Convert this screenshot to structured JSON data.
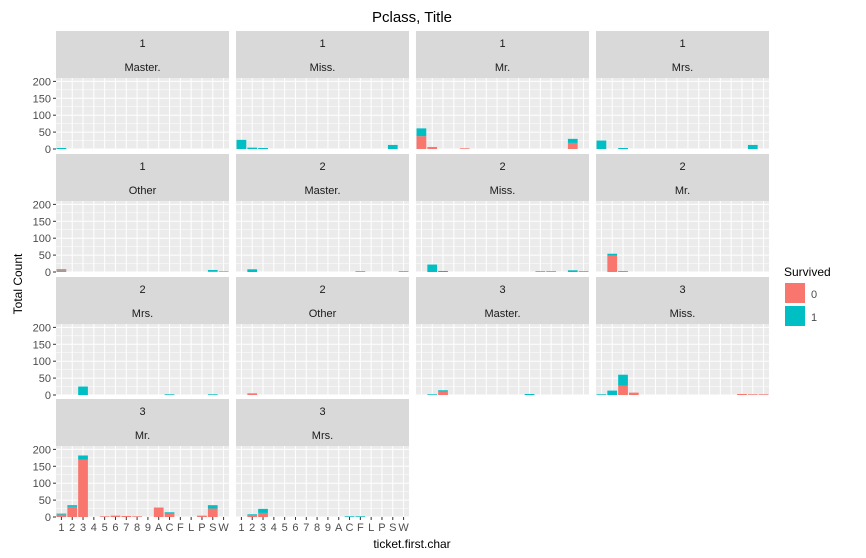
{
  "chart_data": {
    "type": "bar",
    "stacked": true,
    "title": "Pclass, Title",
    "xlabel": "ticket.first.char",
    "ylabel": "Total Count",
    "ylim": [
      0,
      210
    ],
    "y_ticks": [
      "0",
      "50",
      "100",
      "150",
      "200"
    ],
    "categories": [
      "1",
      "2",
      "3",
      "4",
      "5",
      "6",
      "7",
      "8",
      "9",
      "A",
      "C",
      "F",
      "L",
      "P",
      "S",
      "W"
    ],
    "legend": {
      "title": "Survived",
      "placement": "right",
      "entries": [
        {
          "label": "0",
          "color": "#F8766D"
        },
        {
          "label": "1",
          "color": "#00BFC4"
        }
      ]
    },
    "panels": [
      {
        "strip1": "1",
        "strip2": "Master.",
        "s0": [
          0,
          0,
          0,
          0,
          0,
          0,
          0,
          0,
          0,
          0,
          0,
          0,
          0,
          0,
          0,
          0
        ],
        "s1": [
          3,
          0,
          0,
          0,
          0,
          0,
          0,
          0,
          0,
          0,
          0,
          0,
          0,
          0,
          0,
          0
        ]
      },
      {
        "strip1": "1",
        "strip2": "Miss.",
        "s0": [
          0,
          0,
          0,
          0,
          0,
          0,
          0,
          0,
          0,
          0,
          0,
          0,
          0,
          0,
          0,
          0
        ],
        "s1": [
          27,
          4,
          3,
          0,
          0,
          0,
          0,
          0,
          0,
          0,
          0,
          0,
          0,
          0,
          12,
          0
        ]
      },
      {
        "strip1": "1",
        "strip2": "Mr.",
        "s0": [
          38,
          6,
          0,
          0,
          2,
          0,
          0,
          0,
          0,
          0,
          0,
          0,
          0,
          0,
          18,
          0
        ],
        "s1": [
          23,
          0,
          0,
          0,
          0,
          0,
          0,
          0,
          0,
          0,
          0,
          0,
          0,
          0,
          12,
          0
        ]
      },
      {
        "strip1": "1",
        "strip2": "Mrs.",
        "s0": [
          0,
          0,
          0,
          0,
          0,
          0,
          0,
          0,
          0,
          0,
          0,
          0,
          0,
          0,
          0,
          0
        ],
        "s1": [
          25,
          0,
          3,
          0,
          0,
          0,
          0,
          0,
          0,
          0,
          0,
          0,
          0,
          0,
          12,
          0
        ]
      },
      {
        "strip1": "1",
        "strip2": "Other",
        "s0": [
          5,
          0,
          0,
          0,
          0,
          0,
          0,
          0,
          0,
          0,
          0,
          0,
          0,
          0,
          3,
          2
        ],
        "s1": [
          3,
          0,
          0,
          0,
          0,
          0,
          0,
          0,
          0,
          0,
          0,
          0,
          0,
          0,
          3,
          0
        ]
      },
      {
        "strip1": "2",
        "strip2": "Master.",
        "s0": [
          0,
          0,
          0,
          0,
          0,
          0,
          0,
          0,
          0,
          0,
          0,
          0,
          0,
          0,
          0,
          0
        ],
        "s1": [
          0,
          8,
          0,
          0,
          0,
          0,
          0,
          0,
          0,
          0,
          0,
          2,
          0,
          0,
          0,
          2
        ]
      },
      {
        "strip1": "2",
        "strip2": "Miss.",
        "s0": [
          0,
          0,
          0,
          0,
          0,
          0,
          0,
          0,
          0,
          0,
          0,
          0,
          0,
          0,
          0,
          0
        ],
        "s1": [
          0,
          22,
          3,
          0,
          0,
          0,
          0,
          0,
          0,
          0,
          0,
          2,
          2,
          0,
          5,
          2
        ]
      },
      {
        "strip1": "2",
        "strip2": "Mr.",
        "s0": [
          0,
          48,
          3,
          0,
          0,
          0,
          0,
          0,
          0,
          0,
          0,
          0,
          0,
          0,
          0,
          0
        ],
        "s1": [
          0,
          6,
          0,
          0,
          0,
          0,
          0,
          0,
          0,
          0,
          0,
          0,
          0,
          0,
          0,
          0
        ]
      },
      {
        "strip1": "2",
        "strip2": "Mrs.",
        "s0": [
          0,
          0,
          0,
          0,
          0,
          0,
          0,
          0,
          0,
          0,
          0,
          0,
          0,
          0,
          0,
          0
        ],
        "s1": [
          0,
          0,
          25,
          0,
          0,
          0,
          0,
          0,
          0,
          0,
          2,
          0,
          0,
          0,
          2,
          0
        ]
      },
      {
        "strip1": "2",
        "strip2": "Other",
        "s0": [
          0,
          5,
          0,
          0,
          0,
          0,
          0,
          0,
          0,
          0,
          0,
          0,
          0,
          0,
          0,
          0
        ],
        "s1": [
          0,
          0,
          0,
          0,
          0,
          0,
          0,
          0,
          0,
          0,
          0,
          0,
          0,
          0,
          0,
          0
        ]
      },
      {
        "strip1": "3",
        "strip2": "Master.",
        "s0": [
          0,
          0,
          10,
          0,
          0,
          0,
          0,
          0,
          0,
          0,
          0,
          0,
          0,
          0,
          0,
          0
        ],
        "s1": [
          0,
          2,
          4,
          0,
          0,
          0,
          0,
          0,
          0,
          0,
          3,
          0,
          0,
          0,
          0,
          0
        ]
      },
      {
        "strip1": "3",
        "strip2": "Miss.",
        "s0": [
          0,
          0,
          28,
          7,
          0,
          0,
          0,
          0,
          0,
          0,
          0,
          0,
          0,
          3,
          2,
          2
        ],
        "s1": [
          2,
          13,
          32,
          0,
          0,
          0,
          0,
          0,
          0,
          0,
          0,
          0,
          0,
          0,
          0,
          0
        ]
      },
      {
        "strip1": "3",
        "strip2": "Mr.",
        "s0": [
          7,
          30,
          170,
          0,
          2,
          4,
          3,
          2,
          0,
          28,
          10,
          0,
          0,
          4,
          25,
          0
        ],
        "s1": [
          3,
          5,
          12,
          0,
          0,
          0,
          0,
          0,
          0,
          0,
          4,
          0,
          0,
          0,
          10,
          0
        ]
      },
      {
        "strip1": "3",
        "strip2": "Mrs.",
        "s0": [
          0,
          5,
          12,
          0,
          0,
          0,
          0,
          0,
          0,
          0,
          0,
          0,
          0,
          0,
          0,
          0
        ],
        "s1": [
          0,
          3,
          12,
          0,
          0,
          0,
          0,
          0,
          0,
          0,
          2,
          2,
          0,
          0,
          0,
          0
        ]
      }
    ]
  }
}
